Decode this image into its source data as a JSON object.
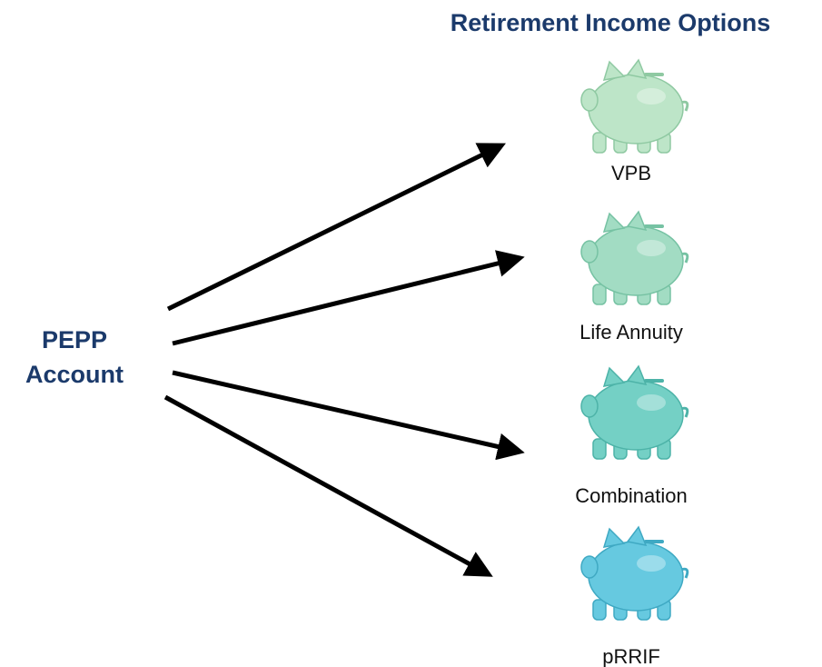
{
  "header": {
    "title": "Retirement Income Options"
  },
  "source": {
    "lines": [
      "PEPP",
      "Account"
    ]
  },
  "nodes": [
    {
      "label": "VPB"
    },
    {
      "label": "Life Annuity"
    },
    {
      "label": "Combination"
    },
    {
      "label": "pRRIF"
    }
  ]
}
